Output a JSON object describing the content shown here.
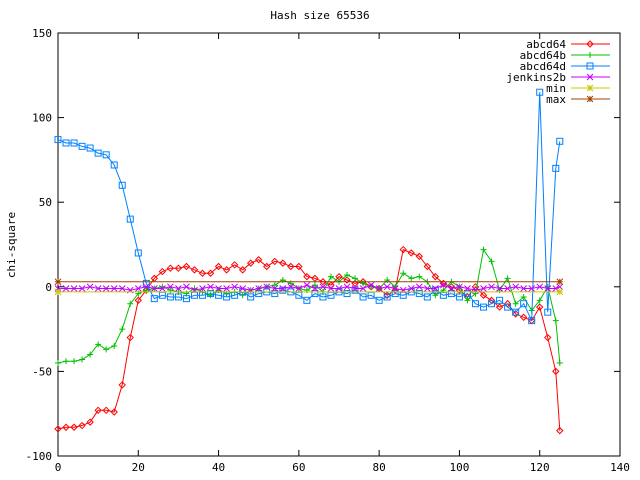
{
  "chart_data": {
    "type": "line",
    "title": "Hash size 65536",
    "xlabel": "",
    "ylabel": "chi-square",
    "xlim": [
      0,
      140
    ],
    "ylim": [
      -100,
      150
    ],
    "xticks": [
      0,
      20,
      40,
      60,
      80,
      100,
      120,
      140
    ],
    "yticks": [
      -100,
      -50,
      0,
      50,
      100,
      150
    ],
    "xtick_labels": [
      "0",
      "20",
      "40",
      "60",
      "80",
      "100",
      "120",
      "140"
    ],
    "ytick_labels": [
      "-100",
      "-50",
      "0",
      "50",
      "100",
      "150"
    ],
    "grid": false,
    "legend_position": "top-right",
    "series": [
      {
        "name": "abcd64",
        "color": "#ff0000",
        "marker": "diamond",
        "x": [
          0,
          2,
          4,
          6,
          8,
          10,
          12,
          14,
          16,
          18,
          20,
          22,
          24,
          26,
          28,
          30,
          32,
          34,
          36,
          38,
          40,
          42,
          44,
          46,
          48,
          50,
          52,
          54,
          56,
          58,
          60,
          62,
          64,
          66,
          68,
          70,
          72,
          74,
          76,
          78,
          80,
          82,
          84,
          86,
          88,
          90,
          92,
          94,
          96,
          98,
          100,
          102,
          104,
          106,
          108,
          110,
          112,
          114,
          116,
          118,
          120,
          122,
          124,
          125
        ],
        "y": [
          -84,
          -83,
          -83,
          -82,
          -80,
          -73,
          -73,
          -74,
          -58,
          -30,
          -8,
          -2,
          5,
          9,
          11,
          11,
          12,
          10,
          8,
          8,
          12,
          10,
          13,
          10,
          14,
          16,
          12,
          15,
          14,
          12,
          12,
          6,
          5,
          3,
          1,
          6,
          4,
          2,
          3,
          0,
          -1,
          -5,
          -2,
          22,
          20,
          18,
          12,
          6,
          2,
          0,
          -2,
          -6,
          0,
          -5,
          -8,
          -12,
          -10,
          -16,
          -18,
          -20,
          -12,
          -30,
          -50,
          -85
        ]
      },
      {
        "name": "abcd64b",
        "color": "#00c000",
        "marker": "plus",
        "x": [
          0,
          2,
          4,
          6,
          8,
          10,
          12,
          14,
          16,
          18,
          20,
          22,
          24,
          26,
          28,
          30,
          32,
          34,
          36,
          38,
          40,
          42,
          44,
          46,
          48,
          50,
          52,
          54,
          56,
          58,
          60,
          62,
          64,
          66,
          68,
          70,
          72,
          74,
          76,
          78,
          80,
          82,
          84,
          86,
          88,
          90,
          92,
          94,
          96,
          98,
          100,
          102,
          104,
          106,
          108,
          110,
          112,
          114,
          116,
          118,
          120,
          122,
          124,
          125
        ],
        "y": [
          -45,
          -44,
          -44,
          -43,
          -40,
          -34,
          -37,
          -35,
          -25,
          -10,
          -4,
          -2,
          -1,
          0,
          -2,
          -3,
          -4,
          -1,
          -3,
          -5,
          -2,
          -4,
          -3,
          -5,
          -2,
          -1,
          0,
          1,
          4,
          2,
          -1,
          -2,
          1,
          -3,
          6,
          3,
          7,
          5,
          2,
          0,
          -1,
          4,
          0,
          8,
          5,
          6,
          3,
          -5,
          -2,
          3,
          0,
          -8,
          -4,
          22,
          15,
          -2,
          5,
          -10,
          -6,
          -14,
          -8,
          0,
          -20,
          -45
        ]
      },
      {
        "name": "abcd64d",
        "color": "#0080ff",
        "marker": "square",
        "x": [
          0,
          2,
          4,
          6,
          8,
          10,
          12,
          14,
          16,
          18,
          20,
          22,
          24,
          26,
          28,
          30,
          32,
          34,
          36,
          38,
          40,
          42,
          44,
          46,
          48,
          50,
          52,
          54,
          56,
          58,
          60,
          62,
          64,
          66,
          68,
          70,
          72,
          74,
          76,
          78,
          80,
          82,
          84,
          86,
          88,
          90,
          92,
          94,
          96,
          98,
          100,
          102,
          104,
          106,
          108,
          110,
          112,
          114,
          116,
          118,
          120,
          122,
          124,
          125
        ],
        "y": [
          87,
          85,
          85,
          83,
          82,
          79,
          78,
          72,
          60,
          40,
          20,
          2,
          -7,
          -5,
          -6,
          -6,
          -7,
          -5,
          -5,
          -4,
          -5,
          -6,
          -5,
          -3,
          -6,
          -4,
          -3,
          -4,
          -2,
          -3,
          -5,
          -8,
          -4,
          -6,
          -5,
          -3,
          -4,
          -2,
          -6,
          -5,
          -8,
          -6,
          -4,
          -5,
          -3,
          -4,
          -6,
          -2,
          -5,
          -4,
          -6,
          -4,
          -10,
          -12,
          -10,
          -8,
          -12,
          -15,
          -10,
          -20,
          115,
          -15,
          70,
          86
        ]
      },
      {
        "name": "jenkins2b",
        "color": "#c000ff",
        "marker": "x",
        "x": [
          0,
          2,
          4,
          6,
          8,
          10,
          12,
          14,
          16,
          18,
          20,
          22,
          24,
          26,
          28,
          30,
          32,
          34,
          36,
          38,
          40,
          42,
          44,
          46,
          48,
          50,
          52,
          54,
          56,
          58,
          60,
          62,
          64,
          66,
          68,
          70,
          72,
          74,
          76,
          78,
          80,
          82,
          84,
          86,
          88,
          90,
          92,
          94,
          96,
          98,
          100,
          102,
          104,
          106,
          108,
          110,
          112,
          114,
          116,
          118,
          120,
          122,
          124,
          125
        ],
        "y": [
          -1,
          -1,
          -1,
          -1,
          0,
          -1,
          -1,
          -1,
          -1,
          -2,
          -1,
          0,
          -1,
          -1,
          0,
          -1,
          0,
          -2,
          -1,
          0,
          -1,
          -1,
          0,
          -1,
          -2,
          -1,
          0,
          -1,
          -1,
          0,
          -1,
          1,
          -1,
          0,
          -1,
          -1,
          0,
          -1,
          -1,
          1,
          -1,
          0,
          -1,
          -2,
          -1,
          0,
          -1,
          -1,
          1,
          -1,
          0,
          -1,
          -2,
          -1,
          0,
          -1,
          -1,
          0,
          -1,
          -1,
          0,
          -1,
          -1,
          0
        ]
      },
      {
        "name": "min",
        "color": "#c8c800",
        "marker": "star",
        "x": [
          0,
          125
        ],
        "y": [
          -3,
          -3
        ]
      },
      {
        "name": "max",
        "color": "#a04000",
        "marker": "asterisk",
        "x": [
          0,
          125
        ],
        "y": [
          3,
          3
        ]
      }
    ]
  }
}
